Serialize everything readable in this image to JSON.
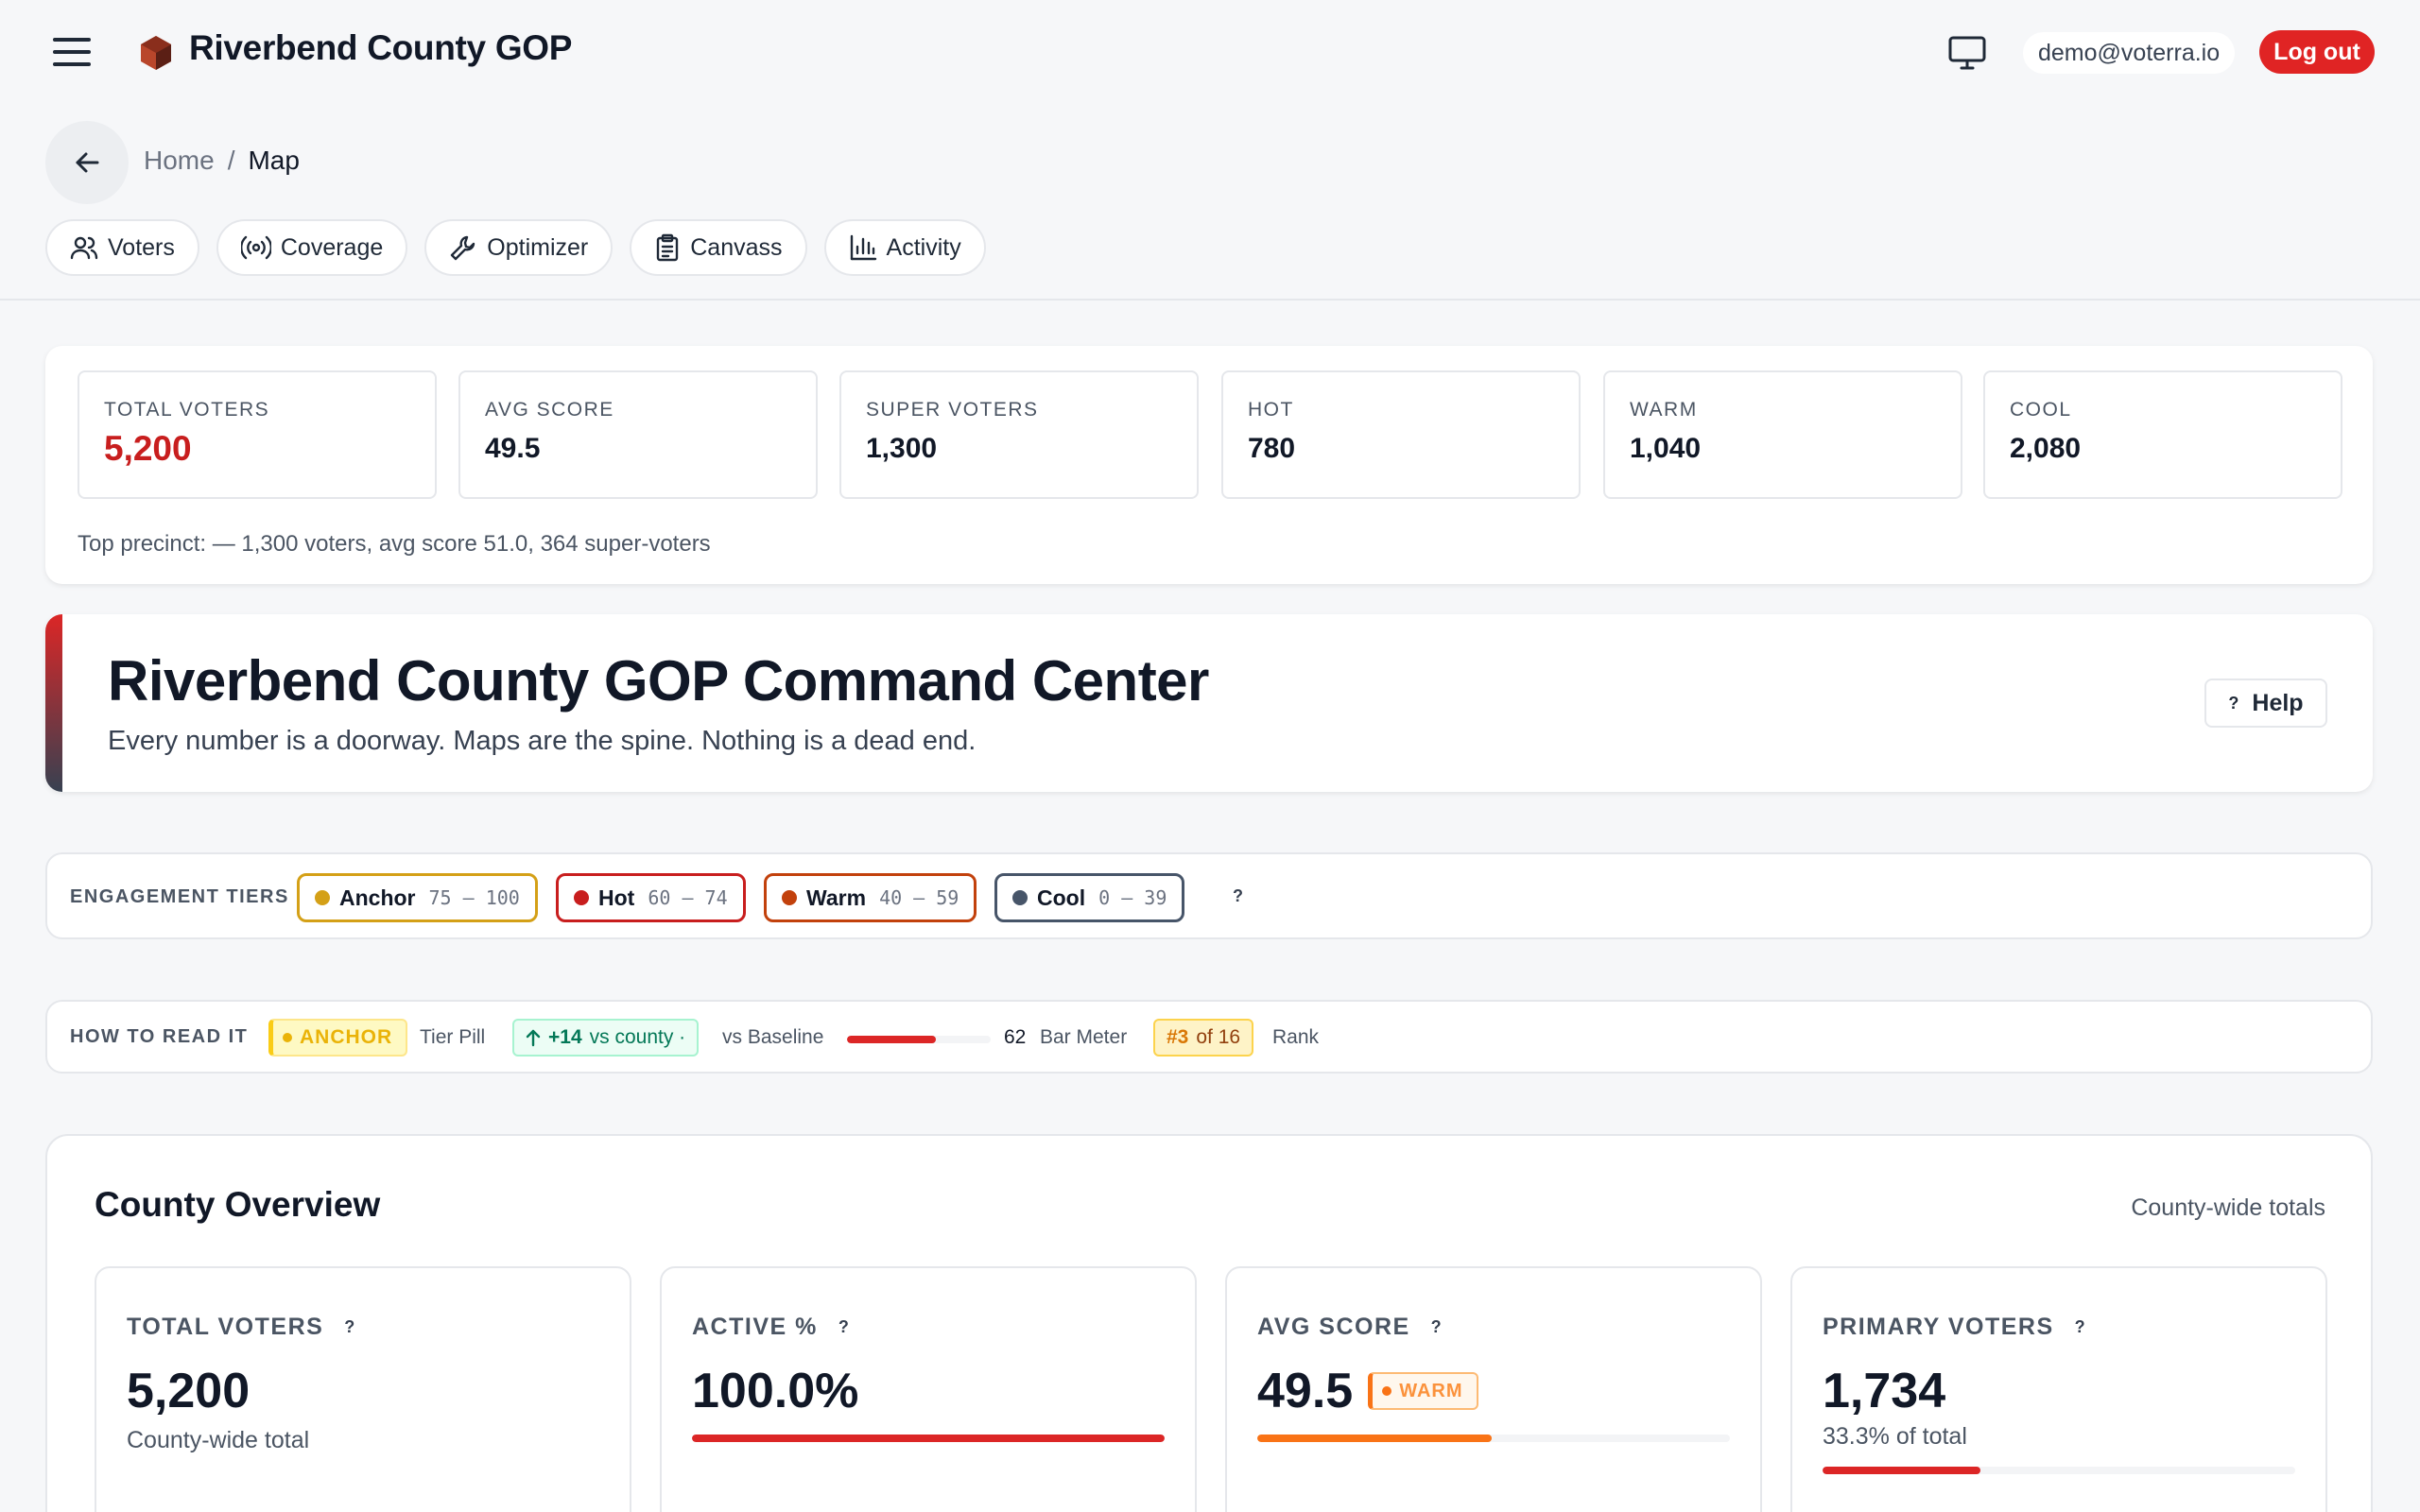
{
  "header": {
    "brand": "Riverbend County GOP",
    "user_email": "demo@voterra.io",
    "logout_label": "Log out"
  },
  "breadcrumb": {
    "home": "Home",
    "separator": "/",
    "current": "Map"
  },
  "nav_tabs": [
    {
      "label": "Voters",
      "icon": "users-icon"
    },
    {
      "label": "Coverage",
      "icon": "broadcast-icon"
    },
    {
      "label": "Optimizer",
      "icon": "wrench-icon"
    },
    {
      "label": "Canvass",
      "icon": "clipboard-icon"
    },
    {
      "label": "Activity",
      "icon": "bar-chart-icon"
    }
  ],
  "stats": [
    {
      "label": "TOTAL VOTERS",
      "value": "5,200"
    },
    {
      "label": "AVG SCORE",
      "value": "49.5"
    },
    {
      "label": "SUPER VOTERS",
      "value": "1,300"
    },
    {
      "label": "HOT",
      "value": "780"
    },
    {
      "label": "WARM",
      "value": "1,040"
    },
    {
      "label": "COOL",
      "value": "2,080"
    }
  ],
  "top_precinct": "Top precinct: — 1,300 voters, avg score 51.0, 364 super-voters",
  "command": {
    "title": "Riverbend County GOP Command Center",
    "subtitle": "Every number is a doorway. Maps are the spine. Nothing is a dead end.",
    "help_q": "?",
    "help_label": "Help"
  },
  "tiers": {
    "title": "ENGAGEMENT TIERS",
    "help_q": "?",
    "items": [
      {
        "name": "Anchor",
        "range": "75 – 100",
        "color": "#d4a017",
        "dot": "#d4a017"
      },
      {
        "name": "Hot",
        "range": "60 – 74",
        "color": "#c81e1e",
        "dot": "#c81e1e"
      },
      {
        "name": "Warm",
        "range": "40 – 59",
        "color": "#c2410c",
        "dot": "#c2410c"
      },
      {
        "name": "Cool",
        "range": "0 – 39",
        "color": "#475569",
        "dot": "#475569"
      }
    ]
  },
  "howto": {
    "title": "HOW TO READ IT",
    "tier_pill": "ANCHOR",
    "tier_pill_label": "Tier Pill",
    "baseline_delta": "+14",
    "baseline_suffix": "vs county ·",
    "baseline_label": "vs Baseline",
    "meter_value": "62",
    "meter_fraction": 0.62,
    "meter_label": "Bar Meter",
    "rank_num": "#3",
    "rank_suffix": "of 16",
    "rank_label": "Rank"
  },
  "overview": {
    "title": "County Overview",
    "note": "County-wide totals",
    "help_q": "?",
    "cards": [
      {
        "label": "TOTAL VOTERS",
        "value": "5,200",
        "caption": "County-wide total"
      },
      {
        "label": "ACTIVE %",
        "value": "100.0%",
        "bar_fraction": 1.0,
        "bar_color": "#dc2626"
      },
      {
        "label": "AVG SCORE",
        "value": "49.5",
        "pill": "WARM",
        "bar_fraction": 0.495,
        "bar_color": "#f97316"
      },
      {
        "label": "PRIMARY VOTERS",
        "value": "1,734",
        "caption": "33.3% of total",
        "bar_fraction": 0.333,
        "bar_color": "#dc2626"
      }
    ]
  }
}
